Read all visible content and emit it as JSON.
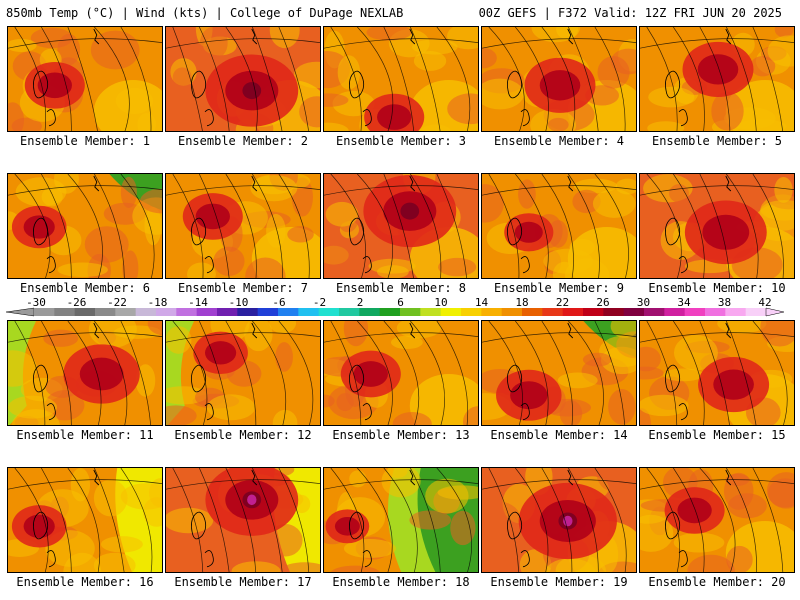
{
  "header": {
    "left": "850mb Temp (°C) | Wind (kts) | College of DuPage NEXLAB",
    "right": "00Z GEFS | F372 Valid: 12Z FRI JUN 20 2025"
  },
  "members": [
    {
      "label": "Ensemble Member: 1",
      "heat": 0.55,
      "hot": [
        0.3,
        0.55
      ],
      "cool": "none"
    },
    {
      "label": "Ensemble Member: 2",
      "heat": 0.85,
      "hot": [
        0.55,
        0.6
      ],
      "cool": "none"
    },
    {
      "label": "Ensemble Member: 3",
      "heat": 0.55,
      "hot": [
        0.45,
        0.85
      ],
      "cool": "none"
    },
    {
      "label": "Ensemble Member: 4",
      "heat": 0.65,
      "hot": [
        0.5,
        0.55
      ],
      "cool": "none"
    },
    {
      "label": "Ensemble Member: 5",
      "heat": 0.65,
      "hot": [
        0.5,
        0.4
      ],
      "cool": "none"
    },
    {
      "label": "Ensemble Member: 6",
      "heat": 0.5,
      "hot": [
        0.2,
        0.5
      ],
      "cool": "top-right"
    },
    {
      "label": "Ensemble Member: 7",
      "heat": 0.55,
      "hot": [
        0.3,
        0.4
      ],
      "cool": "none"
    },
    {
      "label": "Ensemble Member: 8",
      "heat": 0.85,
      "hot": [
        0.55,
        0.35
      ],
      "cool": "none"
    },
    {
      "label": "Ensemble Member: 9",
      "heat": 0.45,
      "hot": [
        0.3,
        0.55
      ],
      "cool": "none"
    },
    {
      "label": "Ensemble Member: 10",
      "heat": 0.75,
      "hot": [
        0.55,
        0.55
      ],
      "cool": "none"
    },
    {
      "label": "Ensemble Member: 11",
      "heat": 0.7,
      "hot": [
        0.6,
        0.5
      ],
      "cool": "left"
    },
    {
      "label": "Ensemble Member: 12",
      "heat": 0.5,
      "hot": [
        0.35,
        0.3
      ],
      "cool": "left"
    },
    {
      "label": "Ensemble Member: 13",
      "heat": 0.55,
      "hot": [
        0.3,
        0.5
      ],
      "cool": "none"
    },
    {
      "label": "Ensemble Member: 14",
      "heat": 0.6,
      "hot": [
        0.3,
        0.7
      ],
      "cool": "top-right"
    },
    {
      "label": "Ensemble Member: 15",
      "heat": 0.65,
      "hot": [
        0.6,
        0.6
      ],
      "cool": "none"
    },
    {
      "label": "Ensemble Member: 16",
      "heat": 0.5,
      "hot": [
        0.2,
        0.55
      ],
      "cool": "right"
    },
    {
      "label": "Ensemble Member: 17",
      "heat": 0.85,
      "hot": [
        0.55,
        0.3
      ],
      "cool": "right"
    },
    {
      "label": "Ensemble Member: 18",
      "heat": 0.4,
      "hot": [
        0.15,
        0.55
      ],
      "cool": "strong-right"
    },
    {
      "label": "Ensemble Member: 19",
      "heat": 0.9,
      "hot": [
        0.55,
        0.5
      ],
      "cool": "none"
    },
    {
      "label": "Ensemble Member: 20",
      "heat": 0.55,
      "hot": [
        0.35,
        0.4
      ],
      "cool": "none"
    }
  ],
  "colorbar": {
    "ticks": [
      "-30",
      "-26",
      "-22",
      "-18",
      "-14",
      "-10",
      "-6",
      "-2",
      "2",
      "6",
      "10",
      "14",
      "18",
      "22",
      "26",
      "30",
      "34",
      "38",
      "42"
    ],
    "colors": [
      "#9a9a9a",
      "#828282",
      "#6a6a6a",
      "#8a8a8a",
      "#a8a8a8",
      "#c8b8d8",
      "#d0a8e8",
      "#c070e0",
      "#a040d0",
      "#7020b0",
      "#2a20a0",
      "#2040d8",
      "#2080f0",
      "#20c0f0",
      "#20e0d0",
      "#20c8a0",
      "#10a860",
      "#20a020",
      "#70c020",
      "#c0e020",
      "#f0f000",
      "#f8d000",
      "#f8b000",
      "#f09000",
      "#e86000",
      "#e83818",
      "#e01818",
      "#c00018",
      "#900020",
      "#800040",
      "#a01070",
      "#d020a0",
      "#f040c0",
      "#f070e0",
      "#f8a8f0",
      "#f8d0f8"
    ]
  },
  "palette": {
    "cool_green": "#3ca020",
    "yellow_green": "#a8d820",
    "yellow": "#f0e800",
    "gold": "#f8c000",
    "orange": "#f09000",
    "orange_red": "#e86020",
    "red": "#e02818",
    "dark_red": "#b00018",
    "maroon": "#800020",
    "magenta": "#c02090"
  }
}
